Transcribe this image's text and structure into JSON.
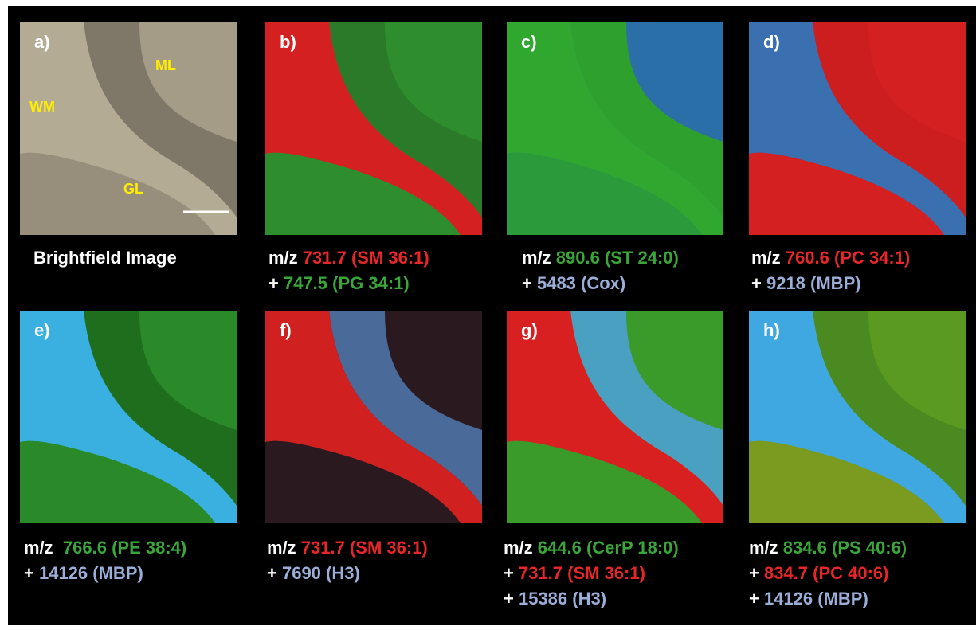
{
  "panels": [
    {
      "label": "a)",
      "annotations": [
        "ML",
        "WM",
        "GL"
      ],
      "caption": [
        [
          {
            "text": "Brightfield Image",
            "color": "#ffffff"
          }
        ]
      ]
    },
    {
      "label": "b)",
      "caption": [
        [
          {
            "text": "m/z ",
            "color": "#ffffff"
          },
          {
            "text": "731.7 (SM 36:1)",
            "color": "#e8262a"
          }
        ],
        [
          {
            "text": "+ ",
            "color": "#ffffff"
          },
          {
            "text": "747.5 (PG 34:1)",
            "color": "#3aa63a"
          }
        ]
      ]
    },
    {
      "label": "c)",
      "caption": [
        [
          {
            "text": "m/z ",
            "color": "#ffffff"
          },
          {
            "text": "890.6 (ST 24:0)",
            "color": "#3aa63a"
          }
        ],
        [
          {
            "text": "+ ",
            "color": "#ffffff"
          },
          {
            "text": "5483 (Cox)",
            "color": "#9aaed8"
          }
        ]
      ]
    },
    {
      "label": "d)",
      "caption": [
        [
          {
            "text": "m/z ",
            "color": "#ffffff"
          },
          {
            "text": "760.6 (PC 34:1)",
            "color": "#e8262a"
          }
        ],
        [
          {
            "text": "+ ",
            "color": "#ffffff"
          },
          {
            "text": "9218 (MBP)",
            "color": "#9aaed8"
          }
        ]
      ]
    },
    {
      "label": "e)",
      "caption": [
        [
          {
            "text": "m/z  ",
            "color": "#ffffff"
          },
          {
            "text": "766.6 (PE 38:4)",
            "color": "#3aa63a"
          }
        ],
        [
          {
            "text": "+ ",
            "color": "#ffffff"
          },
          {
            "text": "14126 (MBP)",
            "color": "#9aaed8"
          }
        ]
      ]
    },
    {
      "label": "f)",
      "caption": [
        [
          {
            "text": "m/z ",
            "color": "#ffffff"
          },
          {
            "text": "731.7 (SM 36:1)",
            "color": "#e8262a"
          }
        ],
        [
          {
            "text": "+ ",
            "color": "#ffffff"
          },
          {
            "text": "7690 (H3)",
            "color": "#9aaed8"
          }
        ]
      ]
    },
    {
      "label": "g)",
      "caption": [
        [
          {
            "text": "m/z ",
            "color": "#ffffff"
          },
          {
            "text": "644.6 (CerP 18:0)",
            "color": "#3aa63a"
          }
        ],
        [
          {
            "text": "+ ",
            "color": "#ffffff"
          },
          {
            "text": "731.7 (SM 36:1)",
            "color": "#e8262a"
          }
        ],
        [
          {
            "text": "+ ",
            "color": "#ffffff"
          },
          {
            "text": "15386 (H3)",
            "color": "#9aaed8"
          }
        ]
      ]
    },
    {
      "label": "h)",
      "caption": [
        [
          {
            "text": "m/z ",
            "color": "#ffffff"
          },
          {
            "text": "834.6 (PS 40:6)",
            "color": "#3aa63a"
          }
        ],
        [
          {
            "text": "+ ",
            "color": "#ffffff"
          },
          {
            "text": "834.7 (PC 40:6)",
            "color": "#e8262a"
          }
        ],
        [
          {
            "text": "+ ",
            "color": "#ffffff"
          },
          {
            "text": "14126 (MBP)",
            "color": "#9aaed8"
          }
        ]
      ]
    }
  ]
}
